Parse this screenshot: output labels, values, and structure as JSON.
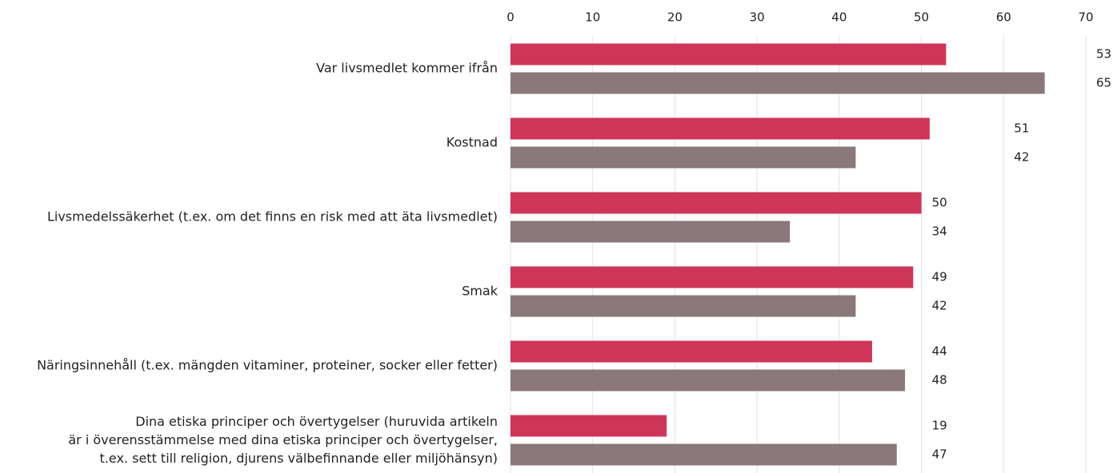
{
  "chart_data": {
    "type": "bar",
    "orientation": "horizontal",
    "categories": [
      "Var livsmedlet kommer ifrån",
      "Kostnad",
      "Livsmedelssäkerhet (t.ex. om det finns en risk med att äta livsmedlet)",
      "Smak",
      "Näringsinnehåll (t.ex. mängden vitaminer, proteiner, socker eller fetter)",
      "Dina etiska principer och övertygelser (huruvida artikeln\när i överensstämmelse med dina etiska principer och övertygelser,\nt.ex. sett till religion, djurens välbefinnande eller miljöhänsyn)"
    ],
    "series": [
      {
        "color": "#cf3558",
        "values": [
          53,
          51,
          50,
          49,
          44,
          19
        ]
      },
      {
        "color": "#8a787a",
        "values": [
          65,
          42,
          34,
          42,
          48,
          47
        ]
      }
    ],
    "xlim": [
      0,
      70
    ],
    "xticks": [
      0,
      10,
      20,
      30,
      40,
      50,
      60,
      70
    ],
    "grid": true
  }
}
